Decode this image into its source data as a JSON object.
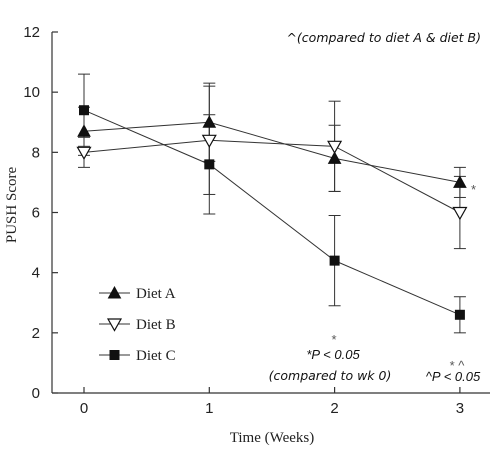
{
  "chart_data": {
    "type": "line",
    "xlabel": "Time (Weeks)",
    "ylabel": "PUSH Score",
    "x": [
      0,
      1,
      2,
      3
    ],
    "xlim": [
      -0.25,
      3.1
    ],
    "ylim": [
      0,
      12
    ],
    "yticks": [
      0,
      2,
      4,
      6,
      8,
      10,
      12
    ],
    "grid": false,
    "legend_position": "bottom-left",
    "series": [
      {
        "name": "Diet A",
        "marker": "triangle-up-filled",
        "values": [
          8.7,
          9.0,
          7.8,
          7.0
        ],
        "err": [
          0.8,
          1.3,
          1.1,
          0.5
        ]
      },
      {
        "name": "Diet B",
        "marker": "triangle-down-open",
        "values": [
          8.0,
          8.4,
          8.2,
          6.0
        ],
        "err": [
          0.5,
          1.8,
          1.5,
          1.2
        ]
      },
      {
        "name": "Diet C",
        "marker": "square-filled",
        "values": [
          9.4,
          7.6,
          4.4,
          2.6
        ],
        "err": [
          1.2,
          1.65,
          1.5,
          0.6
        ]
      }
    ],
    "annotations": {
      "top_note": "^(compared to diet A & diet B)",
      "star_diet_a_wk3": "*",
      "star_wk2": "*",
      "wk2_significance": "*P < 0.05",
      "wk2_note": "(compared to wk 0)",
      "wk3_marks": "*  ^",
      "wk3_significance": "^P < 0.05"
    }
  }
}
